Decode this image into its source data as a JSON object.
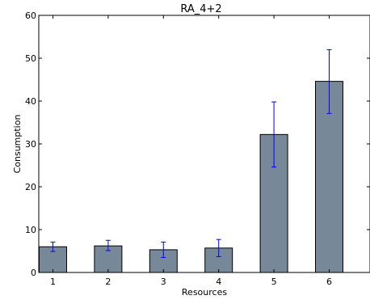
{
  "chart_data": {
    "type": "bar",
    "title": "RA_4+2",
    "xlabel": "Resources",
    "ylabel": "Consumption",
    "categories": [
      "1",
      "2",
      "3",
      "4",
      "5",
      "6"
    ],
    "values": [
      6.0,
      6.2,
      5.3,
      5.7,
      32.2,
      44.6
    ],
    "error_low": [
      4.9,
      5.1,
      3.5,
      3.7,
      24.6,
      37.1
    ],
    "error_high": [
      7.1,
      7.5,
      7.1,
      7.7,
      39.8,
      52.0
    ],
    "ylim": [
      0,
      60
    ],
    "yticks": [
      "0",
      "10",
      "20",
      "30",
      "40",
      "50",
      "60"
    ],
    "bar_color": "#778899",
    "error_color": "#0000ff",
    "grid": false,
    "legend": "none"
  }
}
